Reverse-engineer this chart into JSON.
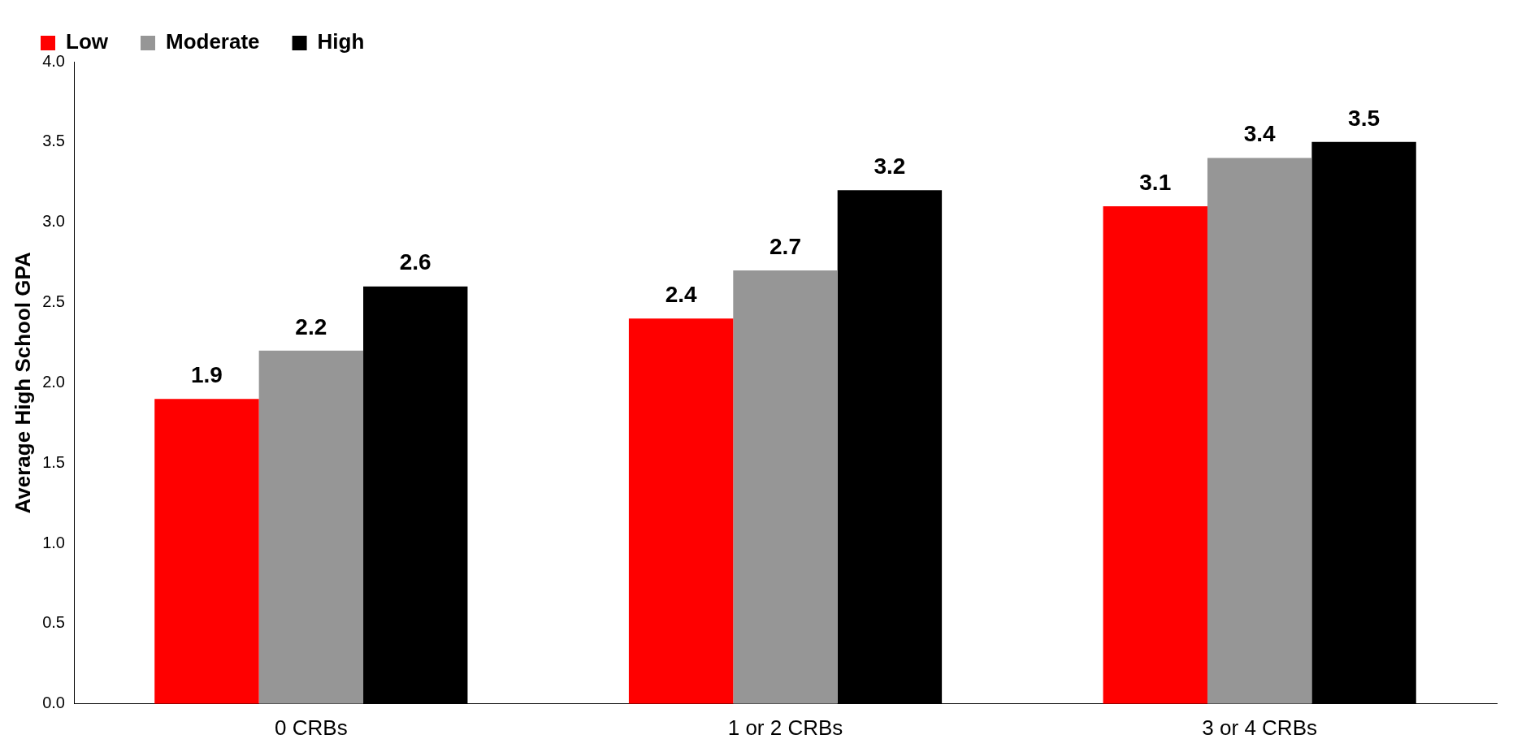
{
  "chart_data": {
    "type": "bar",
    "ylabel": "Average High School GPA",
    "categories": [
      "0 CRBs",
      "1 or 2 CRBs",
      "3 or 4 CRBs"
    ],
    "series": [
      {
        "name": "Low",
        "color": "#ff0000",
        "values": [
          1.9,
          2.4,
          3.1
        ]
      },
      {
        "name": "Moderate",
        "color": "#969696",
        "values": [
          2.2,
          2.7,
          3.4
        ]
      },
      {
        "name": "High",
        "color": "#000000",
        "values": [
          2.6,
          3.2,
          3.5
        ]
      }
    ],
    "ylim": [
      0,
      4
    ],
    "yticks": [
      {
        "value": 0,
        "label": "0.0"
      },
      {
        "value": 0.5,
        "label": "0.5"
      },
      {
        "value": 1,
        "label": "1.0"
      },
      {
        "value": 1.5,
        "label": "1.5"
      },
      {
        "value": 2,
        "label": "2.0"
      },
      {
        "value": 2.5,
        "label": "2.5"
      },
      {
        "value": 3,
        "label": "3.0"
      },
      {
        "value": 3.5,
        "label": "3.5"
      },
      {
        "value": 4,
        "label": "4.0"
      }
    ],
    "grid": false,
    "legend": "top left",
    "data_labels": true
  }
}
